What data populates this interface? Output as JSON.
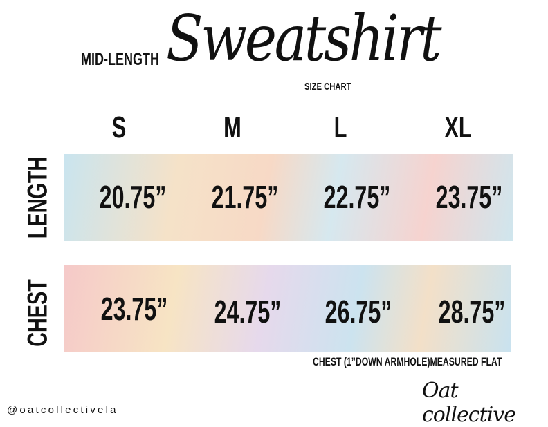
{
  "header": {
    "prefix": "MID-LENGTH",
    "title": "Sweatshirt",
    "subtitle": "SIZE CHART"
  },
  "sizes": [
    "S",
    "M",
    "L",
    "XL"
  ],
  "rows": [
    {
      "label": "LENGTH",
      "values": [
        "20.75”",
        "21.75”",
        "22.75”",
        "23.75”"
      ]
    },
    {
      "label": "CHEST",
      "values": [
        "23.75”",
        "24.75”",
        "26.75”",
        "28.75”"
      ]
    }
  ],
  "note": "CHEST (1”DOWN ARMHOLE)MEASURED FLAT",
  "footer": {
    "handle": "@oatcollectivela",
    "logo": "Oat collective"
  }
}
